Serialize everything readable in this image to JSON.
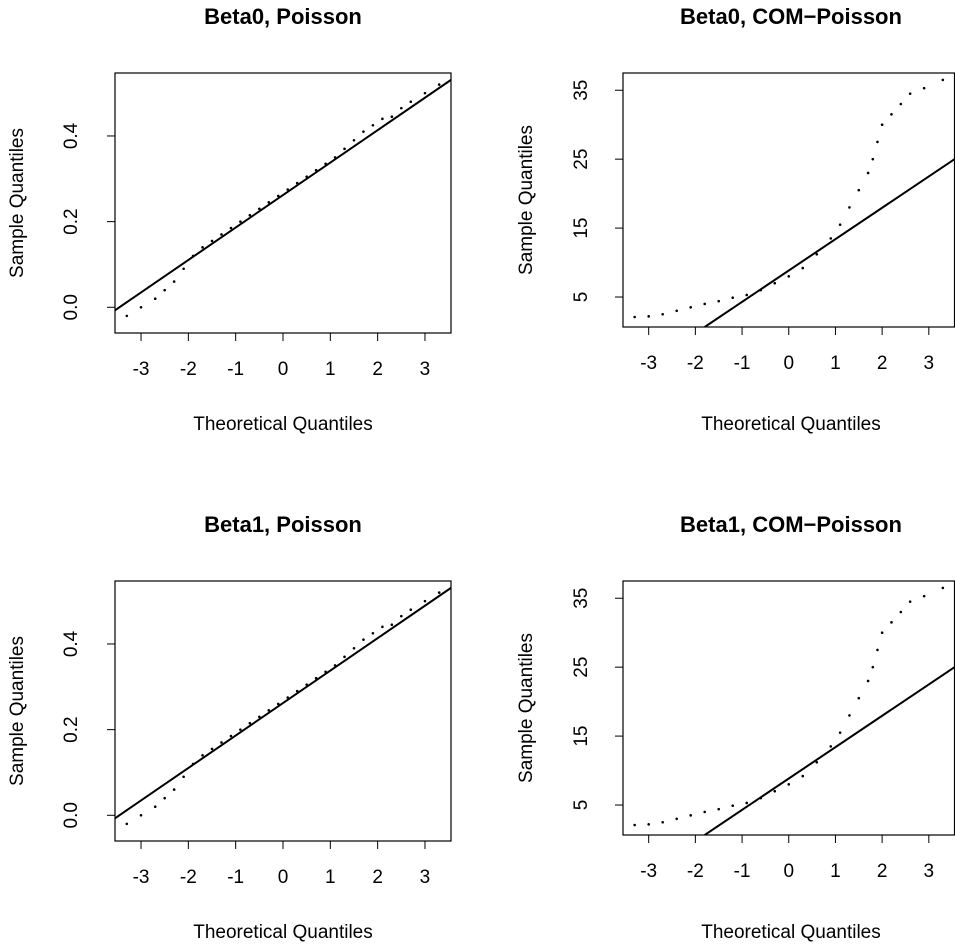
{
  "chart_data": [
    {
      "type": "qq",
      "title": "Beta0, Poisson",
      "x_label": "Theoretical Quantiles",
      "y_label": "Sample Quantiles",
      "x": [
        -3.3,
        -3.0,
        -2.7,
        -2.5,
        -2.3,
        -2.1,
        -1.9,
        -1.7,
        -1.5,
        -1.3,
        -1.1,
        -0.9,
        -0.7,
        -0.5,
        -0.3,
        -0.1,
        0.1,
        0.3,
        0.5,
        0.7,
        0.9,
        1.1,
        1.3,
        1.5,
        1.7,
        1.9,
        2.1,
        2.3,
        2.5,
        2.7,
        3.0,
        3.3
      ],
      "values": [
        -0.02,
        0.0,
        0.02,
        0.04,
        0.06,
        0.09,
        0.12,
        0.14,
        0.155,
        0.17,
        0.185,
        0.2,
        0.215,
        0.23,
        0.245,
        0.26,
        0.275,
        0.29,
        0.305,
        0.32,
        0.335,
        0.35,
        0.37,
        0.39,
        0.41,
        0.425,
        0.44,
        0.445,
        0.465,
        0.48,
        0.5,
        0.52
      ],
      "reference_line": {
        "x": [
          -3.55,
          3.55
        ],
        "y": [
          -0.007,
          0.531
        ]
      },
      "color": "#000000",
      "xlim": [
        -3.55,
        3.55
      ],
      "xticks": [
        -3,
        -2,
        -1,
        0,
        1,
        2,
        3
      ],
      "ylim": [
        -0.06,
        0.547
      ],
      "yticks": [
        {
          "value": 0,
          "label": "0.0"
        },
        {
          "value": 0.2,
          "label": "0.2"
        },
        {
          "value": 0.4,
          "label": "0.4"
        }
      ]
    },
    {
      "type": "qq",
      "title": "Beta0, COM−Poisson",
      "x_label": "Theoretical Quantiles",
      "y_label": "Sample Quantiles",
      "x": [
        -3.3,
        -3.0,
        -2.7,
        -2.4,
        -2.1,
        -1.8,
        -1.5,
        -1.2,
        -0.9,
        -0.6,
        -0.3,
        0,
        0.3,
        0.6,
        0.9,
        1.1,
        1.3,
        1.5,
        1.7,
        1.8,
        1.9,
        2.0,
        2.2,
        2.4,
        2.6,
        2.9,
        3.3
      ],
      "values": [
        2.1,
        2.2,
        2.5,
        3.0,
        3.5,
        4.0,
        4.4,
        4.9,
        5.3,
        6.0,
        7.0,
        8.0,
        9.2,
        11.2,
        13.5,
        15.5,
        18.0,
        20.5,
        23,
        25,
        27.5,
        30,
        31.5,
        33,
        34.5,
        35.3,
        36.5
      ],
      "reference_line": {
        "x": [
          -1.8,
          3.55
        ],
        "y": [
          0.65,
          25
        ]
      },
      "color": "#000000",
      "xlim": [
        -3.55,
        3.55
      ],
      "xticks": [
        -3,
        -2,
        -1,
        0,
        1,
        2,
        3
      ],
      "ylim": [
        0.65,
        37.5
      ],
      "yticks": [
        5,
        15,
        25,
        35
      ]
    },
    {
      "type": "qq",
      "title": "Beta1, Poisson",
      "x_label": "Theoretical Quantiles",
      "y_label": "Sample Quantiles",
      "x": [
        -3.3,
        -3.0,
        -2.7,
        -2.5,
        -2.3,
        -2.1,
        -1.9,
        -1.7,
        -1.5,
        -1.3,
        -1.1,
        -0.9,
        -0.7,
        -0.5,
        -0.3,
        -0.1,
        0.1,
        0.3,
        0.5,
        0.7,
        0.9,
        1.1,
        1.3,
        1.5,
        1.7,
        1.9,
        2.1,
        2.3,
        2.5,
        2.7,
        3.0,
        3.3
      ],
      "values": [
        -0.02,
        0.0,
        0.02,
        0.04,
        0.06,
        0.09,
        0.12,
        0.14,
        0.155,
        0.17,
        0.185,
        0.2,
        0.215,
        0.23,
        0.245,
        0.26,
        0.275,
        0.29,
        0.305,
        0.32,
        0.335,
        0.35,
        0.37,
        0.39,
        0.41,
        0.425,
        0.44,
        0.445,
        0.465,
        0.48,
        0.5,
        0.52
      ],
      "reference_line": {
        "x": [
          -3.55,
          3.55
        ],
        "y": [
          -0.007,
          0.531
        ]
      },
      "color": "#000000",
      "xlim": [
        -3.55,
        3.55
      ],
      "xticks": [
        -3,
        -2,
        -1,
        0,
        1,
        2,
        3
      ],
      "ylim": [
        -0.06,
        0.547
      ],
      "yticks": [
        {
          "value": 0,
          "label": "0.0"
        },
        {
          "value": 0.2,
          "label": "0.2"
        },
        {
          "value": 0.4,
          "label": "0.4"
        }
      ]
    },
    {
      "type": "qq",
      "title": "Beta1, COM−Poisson",
      "x_label": "Theoretical Quantiles",
      "y_label": "Sample Quantiles",
      "x": [
        -3.3,
        -3.0,
        -2.7,
        -2.4,
        -2.1,
        -1.8,
        -1.5,
        -1.2,
        -0.9,
        -0.6,
        -0.3,
        0,
        0.3,
        0.6,
        0.9,
        1.1,
        1.3,
        1.5,
        1.7,
        1.8,
        1.9,
        2.0,
        2.2,
        2.4,
        2.6,
        2.9,
        3.3
      ],
      "values": [
        2.1,
        2.2,
        2.5,
        3.0,
        3.5,
        4.0,
        4.4,
        4.9,
        5.3,
        6.0,
        7.0,
        8.0,
        9.2,
        11.2,
        13.5,
        15.5,
        18.0,
        20.5,
        23,
        25,
        27.5,
        30,
        31.5,
        33,
        34.5,
        35.3,
        36.5
      ],
      "reference_line": {
        "x": [
          -1.8,
          3.55
        ],
        "y": [
          0.65,
          25
        ]
      },
      "color": "#000000",
      "xlim": [
        -3.55,
        3.55
      ],
      "xticks": [
        -3,
        -2,
        -1,
        0,
        1,
        2,
        3
      ],
      "ylim": [
        0.65,
        37.5
      ],
      "yticks": [
        5,
        15,
        25,
        35
      ]
    }
  ]
}
